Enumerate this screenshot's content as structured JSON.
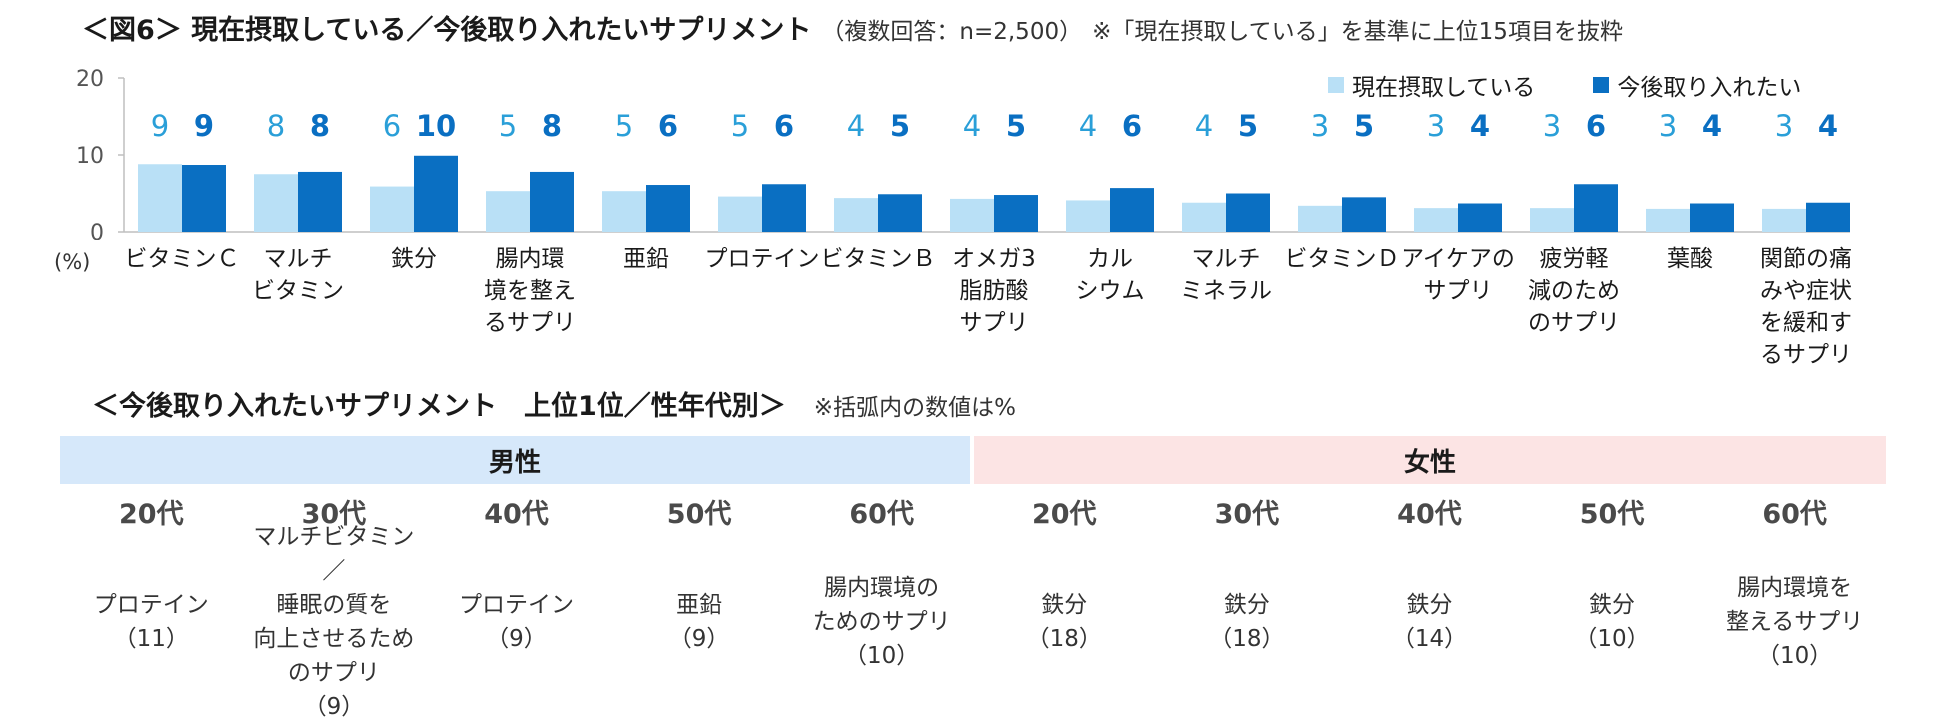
{
  "title": {
    "main": "＜図6＞ 現在摂取している／今後取り入れたいサプリメント",
    "note": "（複数回答：n=2,500）",
    "note2": "※「現在摂取している」を基準に上位15項目を抜粋"
  },
  "chart_data": {
    "type": "bar",
    "categories": [
      "ビタミンＣ",
      "マルチ\nビタミン",
      "鉄分",
      "腸内環\n境を整え\nるサプリ",
      "亜鉛",
      "プロテイン",
      "ビタミンＢ",
      "オメガ3\n脂肪酸\nサプリ",
      "カル\nシウム",
      "マルチ\nミネラル",
      "ビタミンＤ",
      "アイケアの\nサプリ",
      "疲労軽\n減のため\nのサプリ",
      "葉酸",
      "関節の痛\nみや症状\nを緩和す\nるサプリ"
    ],
    "series": [
      {
        "name": "現在摂取している",
        "values": [
          9,
          8,
          6,
          5,
          5,
          5,
          4,
          4,
          4,
          4,
          3,
          3,
          3,
          3,
          3
        ],
        "color": "#b9e0f6"
      },
      {
        "name": "今後取り入れたい",
        "values": [
          9,
          8,
          10,
          8,
          6,
          6,
          5,
          5,
          6,
          5,
          5,
          4,
          6,
          4,
          4
        ],
        "color": "#0a6fc2"
      }
    ],
    "actual_heights": [
      [
        8.8,
        7.5,
        5.9,
        5.3,
        5.3,
        4.6,
        4.4,
        4.3,
        4.1,
        3.8,
        3.4,
        3.1,
        3.1,
        3.0,
        3.0
      ],
      [
        8.7,
        7.8,
        9.9,
        7.8,
        6.1,
        6.2,
        4.9,
        4.8,
        5.7,
        5.0,
        4.5,
        3.7,
        6.2,
        3.7,
        3.8
      ]
    ],
    "ylim": [
      0,
      20
    ],
    "yticks": [
      "0",
      "10",
      "20"
    ],
    "ylabel": "(%)",
    "legend_position": "top-right"
  },
  "subsection": {
    "title": "＜今後取り入れたいサプリメント　上位1位／性年代別＞",
    "note": "※括弧内の数値は%",
    "male_label": "男性",
    "female_label": "女性",
    "ages": [
      "20代",
      "30代",
      "40代",
      "50代",
      "60代",
      "20代",
      "30代",
      "40代",
      "50代",
      "60代"
    ],
    "results": [
      {
        "name": "プロテイン",
        "value": "（11）"
      },
      {
        "name": "マルチビタミン／\n睡眠の質を\n向上させるため\nのサプリ",
        "value": "（9）"
      },
      {
        "name": "プロテイン",
        "value": "（9）"
      },
      {
        "name": "亜鉛",
        "value": "（9）"
      },
      {
        "name": "腸内環境の\nためのサプリ",
        "value": "（10）"
      },
      {
        "name": "鉄分",
        "value": "（18）"
      },
      {
        "name": "鉄分",
        "value": "（18）"
      },
      {
        "name": "鉄分",
        "value": "（14）"
      },
      {
        "name": "鉄分",
        "value": "（10）"
      },
      {
        "name": "腸内環境を\n整えるサプリ",
        "value": "（10）"
      }
    ]
  }
}
